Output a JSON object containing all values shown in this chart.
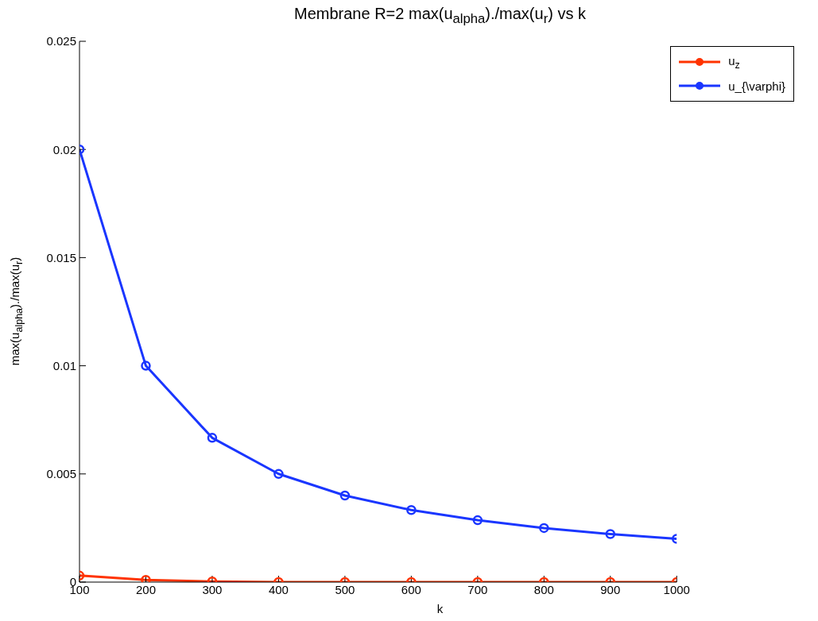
{
  "chart_data": {
    "type": "line",
    "title": "Membrane R=2  max(u$_{alpha}$)./max(u$_{r}$) vs k",
    "xlabel": "k",
    "ylabel": "max(u$_{alpha}$)./max(u$_{r}$)",
    "x": [
      100,
      200,
      300,
      400,
      500,
      600,
      700,
      800,
      900,
      1000
    ],
    "series": [
      {
        "name": "u$_{z}$",
        "color": "#ff3300",
        "values": [
          0.0003,
          0.0001,
          3e-05,
          0,
          0,
          0,
          0,
          0,
          0,
          0
        ]
      },
      {
        "name": "u_{\\varphi}",
        "color": "#1a36ff",
        "values": [
          0.02,
          0.01,
          0.00667,
          0.005,
          0.004,
          0.00333,
          0.00286,
          0.0025,
          0.00222,
          0.002
        ]
      }
    ],
    "xlim": [
      100,
      1000
    ],
    "xticks": [
      100,
      200,
      300,
      400,
      500,
      600,
      700,
      800,
      900,
      1000
    ],
    "ylim": [
      0,
      0.025
    ],
    "yticks": [
      0,
      0.005,
      0.01,
      0.015,
      0.02,
      0.025
    ],
    "grid": false,
    "legend": "top right",
    "marker": "circle",
    "line_style": "solid"
  }
}
